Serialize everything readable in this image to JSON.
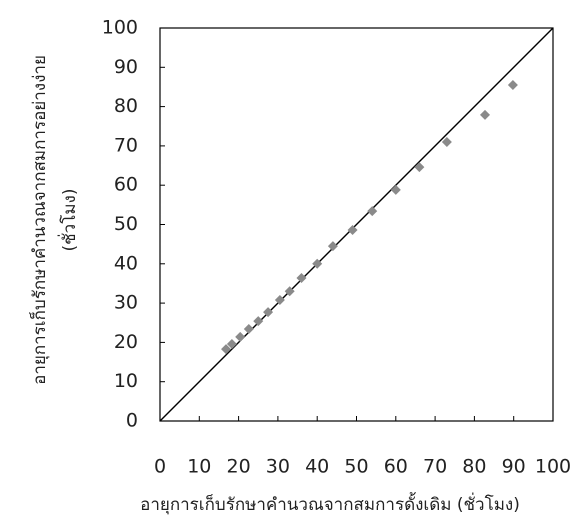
{
  "chart_data": {
    "type": "scatter",
    "x_label": "อายุการเก็บรักษาคำนวณจากสมการดั้งเดิม (ชั่วโมง)",
    "y_label": [
      "อายุการเก็บรักษาคำนวณจากสมการอย่างง่าย",
      "(ชั่วโมง)"
    ],
    "x": [
      16.8,
      18.3,
      20.4,
      22.6,
      25,
      27.5,
      30.5,
      33,
      36,
      40,
      44,
      49,
      54,
      60,
      66,
      73,
      82.7,
      89.8
    ],
    "values": [
      18.3,
      19.6,
      21.4,
      23.4,
      25.4,
      27.7,
      30.8,
      33,
      36.4,
      40,
      44.5,
      48.6,
      53.4,
      58.8,
      64.6,
      71,
      77.9,
      85.5
    ],
    "color": "#8a8a8a",
    "reference_line": {
      "x": [
        0,
        100
      ],
      "y": [
        0,
        100
      ],
      "color": "#000000"
    },
    "xlim": [
      0,
      100
    ],
    "ylim": [
      0,
      100
    ],
    "xticks": [
      0,
      10,
      20,
      30,
      40,
      50,
      60,
      70,
      80,
      90,
      100
    ],
    "yticks": [
      0,
      10,
      20,
      30,
      40,
      50,
      60,
      70,
      80,
      90,
      100
    ]
  }
}
